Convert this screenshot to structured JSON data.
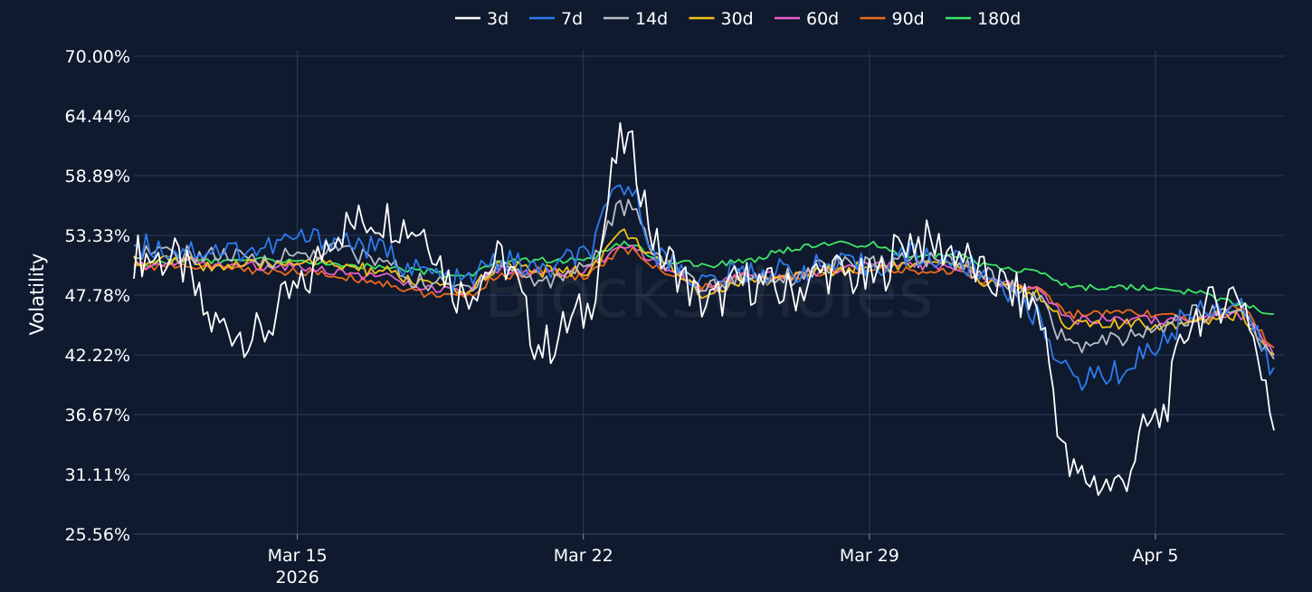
{
  "chart_data": {
    "type": "line",
    "title": "",
    "xlabel": "",
    "ylabel": "Volatility",
    "watermark": "BlockScholes",
    "legend_position": "top-center",
    "grid": true,
    "ylim": [
      25.56,
      70.0
    ],
    "xlim": [
      "2026-03-11",
      "2026-04-08T04:00"
    ],
    "y_ticks": [
      "25.56%",
      "31.11%",
      "36.67%",
      "42.22%",
      "47.78%",
      "53.33%",
      "58.89%",
      "64.44%",
      "70.00%"
    ],
    "y_tick_values": [
      25.56,
      31.11,
      36.67,
      42.22,
      47.78,
      53.33,
      58.89,
      64.44,
      70.0
    ],
    "x_ticks": [
      {
        "date": "2026-03-15",
        "label": "Mar 15",
        "sublabel": "2026"
      },
      {
        "date": "2026-03-22",
        "label": "Mar 22",
        "sublabel": ""
      },
      {
        "date": "2026-03-29",
        "label": "Mar 29",
        "sublabel": ""
      },
      {
        "date": "2026-04-05",
        "label": "Apr 5",
        "sublabel": ""
      }
    ],
    "x": [
      "2026-03-11",
      "2026-03-12",
      "2026-03-13",
      "2026-03-14",
      "2026-03-15",
      "2026-03-16",
      "2026-03-17",
      "2026-03-18",
      "2026-03-19",
      "2026-03-20",
      "2026-03-21",
      "2026-03-22",
      "2026-03-23",
      "2026-03-24",
      "2026-03-25",
      "2026-03-26",
      "2026-03-27",
      "2026-03-28",
      "2026-03-29",
      "2026-03-30",
      "2026-03-31",
      "2026-04-01",
      "2026-04-02",
      "2026-04-03",
      "2026-04-04",
      "2026-04-05",
      "2026-04-06",
      "2026-04-07",
      "2026-04-08"
    ],
    "series": [
      {
        "name": "3d",
        "color": "#ffffff",
        "values": [
          51.5,
          51.0,
          45.0,
          44.0,
          48.0,
          54.0,
          55.0,
          54.0,
          48.0,
          51.0,
          43.0,
          46.0,
          62.0,
          51.0,
          47.0,
          49.0,
          48.0,
          50.0,
          49.0,
          53.0,
          52.0,
          49.0,
          47.0,
          31.0,
          30.0,
          36.0,
          46.0,
          48.0,
          36.0
        ]
      },
      {
        "name": "7d",
        "color": "#2f7bf0",
        "values": [
          52.5,
          52.0,
          52.0,
          52.0,
          53.0,
          53.0,
          52.0,
          50.0,
          49.0,
          51.0,
          50.0,
          51.5,
          58.0,
          51.0,
          49.0,
          50.0,
          50.0,
          50.5,
          50.5,
          51.5,
          51.0,
          49.5,
          46.0,
          40.0,
          40.5,
          43.0,
          46.5,
          47.0,
          40.5
        ]
      },
      {
        "name": "14d",
        "color": "#b8bdc7",
        "values": [
          52.0,
          51.5,
          51.5,
          51.0,
          51.5,
          52.0,
          51.0,
          49.0,
          48.5,
          50.5,
          49.0,
          50.5,
          56.0,
          51.0,
          48.5,
          49.5,
          49.5,
          50.5,
          50.5,
          51.0,
          51.0,
          49.5,
          47.5,
          43.0,
          43.5,
          44.5,
          46.0,
          46.5,
          41.5
        ]
      },
      {
        "name": "30d",
        "color": "#f2c21b",
        "values": [
          51.0,
          51.0,
          50.5,
          50.5,
          51.0,
          50.5,
          50.0,
          49.0,
          48.0,
          50.5,
          50.0,
          50.0,
          53.5,
          50.5,
          48.0,
          49.0,
          49.5,
          50.0,
          50.5,
          50.5,
          50.5,
          49.0,
          48.0,
          45.0,
          45.0,
          45.0,
          45.5,
          46.0,
          42.0
        ]
      },
      {
        "name": "60d",
        "color": "#e85fc8",
        "values": [
          50.5,
          51.0,
          50.5,
          50.5,
          50.5,
          50.0,
          49.5,
          48.5,
          48.0,
          50.0,
          50.0,
          50.0,
          52.5,
          50.5,
          48.5,
          49.5,
          49.5,
          50.0,
          50.5,
          50.5,
          50.5,
          49.0,
          48.5,
          45.5,
          45.5,
          45.5,
          45.5,
          46.0,
          42.5
        ]
      },
      {
        "name": "90d",
        "color": "#ee6a1a",
        "values": [
          50.5,
          50.5,
          50.5,
          50.0,
          50.0,
          49.5,
          49.0,
          48.0,
          47.5,
          49.5,
          50.0,
          49.5,
          52.0,
          50.0,
          48.5,
          49.5,
          49.5,
          50.0,
          50.0,
          50.0,
          50.0,
          49.0,
          48.5,
          46.0,
          46.0,
          46.0,
          45.5,
          46.5,
          43.0
        ]
      },
      {
        "name": "180d",
        "color": "#3ee566",
        "values": [
          50.5,
          51.0,
          51.0,
          51.0,
          51.0,
          50.5,
          50.5,
          50.0,
          49.5,
          51.0,
          51.0,
          51.0,
          52.5,
          51.0,
          50.5,
          51.0,
          52.0,
          52.5,
          52.5,
          51.5,
          51.5,
          50.5,
          50.0,
          48.5,
          48.5,
          48.5,
          48.0,
          47.0,
          46.0
        ]
      }
    ]
  }
}
